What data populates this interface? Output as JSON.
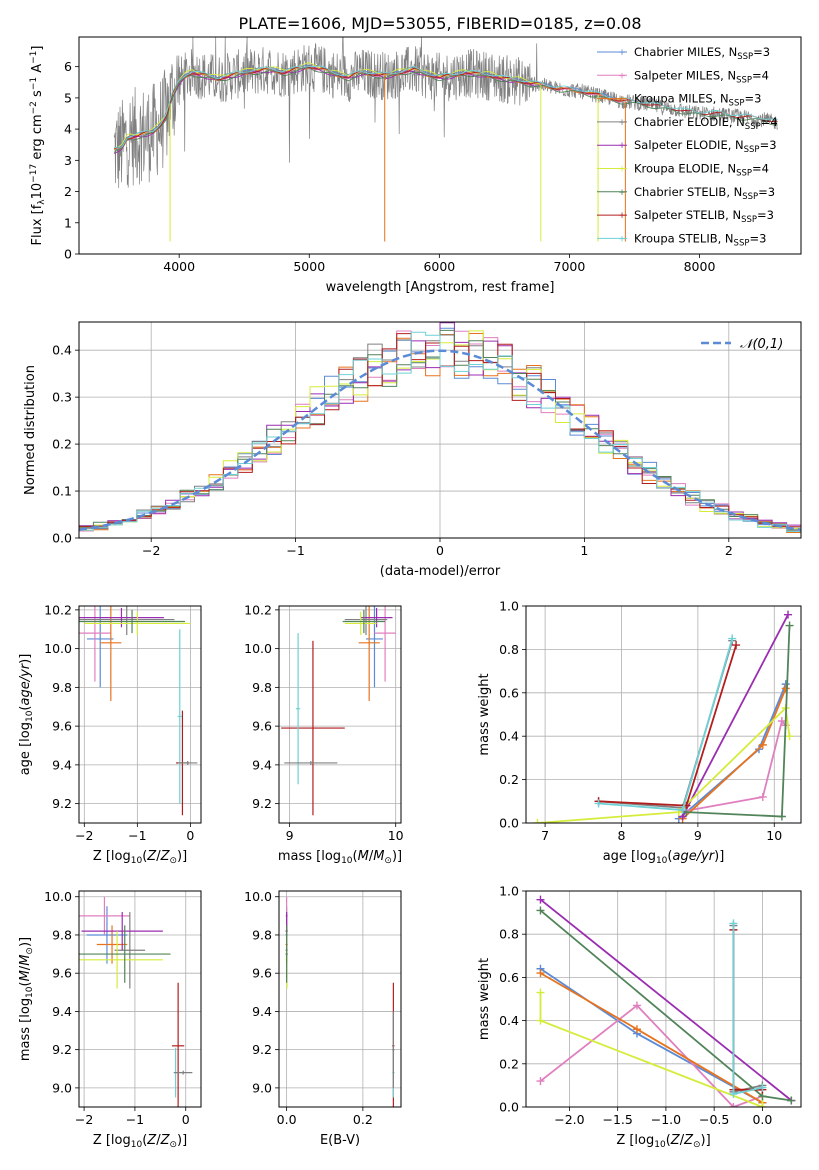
{
  "figure_title": "PLATE=1606, MJD=53055, FIBERID=0185, z=0.08",
  "colors": {
    "chabrier_miles": "#5b8bd6",
    "salpeter_miles": "#e07fbf",
    "kroupa_miles": "#e8731e",
    "chabrier_elodie": "#808080",
    "salpeter_elodie": "#9a2db0",
    "kroupa_elodie": "#d6ec3a",
    "chabrier_stelib": "#52845a",
    "salpeter_stelib": "#b21e1e",
    "kroupa_stelib": "#6fd0d6",
    "grid": "#b0b0b0"
  },
  "chart_data": [
    {
      "id": "spectrum",
      "type": "line",
      "xlabel": "wavelength [Angstrom, rest frame]",
      "ylabel": "Flux [f_λ10^-17 erg cm^-2 s^-1 A^-1]",
      "xlim": [
        3230,
        8780
      ],
      "ylim": [
        0,
        6.95
      ],
      "xticks": [
        4000,
        5000,
        6000,
        7000,
        8000
      ],
      "yticks": [
        0,
        1,
        2,
        3,
        4,
        5,
        6
      ],
      "grid": false,
      "legend_position": "upper-right",
      "continuum": {
        "x": [
          3500,
          3560,
          3600,
          3700,
          3800,
          3850,
          3900,
          3950,
          4000,
          4050,
          4100,
          4200,
          4300,
          4400,
          4500,
          4600,
          4700,
          4800,
          4900,
          5000,
          5100,
          5200,
          5300,
          5400,
          5500,
          5600,
          5700,
          5800,
          5900,
          6000,
          6100,
          6200,
          6300,
          6400,
          6500,
          6600,
          6700,
          6800,
          6900,
          7000,
          7100,
          7200,
          7300,
          7400,
          7500,
          7600,
          7700,
          7800,
          7900,
          8000,
          8100,
          8200,
          8300,
          8400,
          8500,
          8600
        ],
        "y": [
          3.3,
          3.4,
          3.7,
          3.8,
          3.9,
          4.1,
          4.4,
          5.1,
          5.5,
          5.7,
          5.8,
          5.7,
          5.6,
          5.7,
          5.8,
          5.85,
          5.9,
          5.8,
          5.9,
          6.0,
          5.9,
          5.75,
          5.65,
          5.8,
          5.75,
          5.7,
          5.8,
          5.9,
          5.75,
          5.65,
          5.7,
          5.8,
          5.75,
          5.7,
          5.6,
          5.55,
          5.45,
          5.4,
          5.3,
          5.25,
          5.2,
          5.1,
          5.0,
          4.9,
          4.85,
          4.8,
          4.7,
          4.65,
          4.55,
          4.5,
          4.5,
          4.45,
          4.4,
          4.35,
          4.3,
          4.2
        ]
      },
      "series": [
        {
          "name": "Chabrier MILES, N_SSP=3",
          "color_key": "chabrier_miles",
          "offset": 0.04,
          "x_max": 7400
        },
        {
          "name": "Salpeter MILES, N_SSP=4",
          "color_key": "salpeter_miles",
          "offset": -0.02,
          "x_max": 7400
        },
        {
          "name": "Kroupa MILES, N_SSP=3",
          "color_key": "kroupa_miles",
          "offset": 0.0,
          "x_max": 7400
        },
        {
          "name": "Chabrier ELODIE, N_SSP=4",
          "color_key": "chabrier_elodie",
          "offset": 0.05,
          "x_max": 6750
        },
        {
          "name": "Salpeter ELODIE, N_SSP=3",
          "color_key": "salpeter_elodie",
          "offset": -0.03,
          "x_max": 6750
        },
        {
          "name": "Kroupa ELODIE, N_SSP=4",
          "color_key": "kroupa_elodie",
          "offset": 0.08,
          "x_max": 6800
        },
        {
          "name": "Chabrier STELIB, N_SSP=3",
          "color_key": "chabrier_stelib",
          "offset": -0.05,
          "x_max": 8600
        },
        {
          "name": "Salpeter STELIB, N_SSP=3",
          "color_key": "salpeter_stelib",
          "offset": 0.02,
          "x_max": 8600
        },
        {
          "name": "Kroupa STELIB, N_SSP=3",
          "color_key": "kroupa_stelib",
          "offset": 0.06,
          "x_max": 8600
        }
      ],
      "legend_labels": [
        {
          "main": "Chabrier MILES, N",
          "sub": "SSP",
          "tail": "=3"
        },
        {
          "main": "Salpeter MILES, N",
          "sub": "SSP",
          "tail": "=4"
        },
        {
          "main": "Kroupa MILES, N",
          "sub": "SSP",
          "tail": "=3"
        },
        {
          "main": "Chabrier ELODIE, N",
          "sub": "SSP",
          "tail": "=4"
        },
        {
          "main": "Salpeter ELODIE, N",
          "sub": "SSP",
          "tail": "=3"
        },
        {
          "main": "Kroupa ELODIE, N",
          "sub": "SSP",
          "tail": "=4"
        },
        {
          "main": "Chabrier STELIB, N",
          "sub": "SSP",
          "tail": "=3"
        },
        {
          "main": "Salpeter STELIB, N",
          "sub": "SSP",
          "tail": "=3"
        },
        {
          "main": "Kroupa STELIB, N",
          "sub": "SSP",
          "tail": "=3"
        }
      ]
    },
    {
      "id": "residuals",
      "type": "step-histogram",
      "xlabel": "(data-model)/error",
      "ylabel": "Normed distribution",
      "xlim": [
        -2.5,
        2.5
      ],
      "ylim": [
        0,
        0.46
      ],
      "xticks": [
        -2,
        -1,
        0,
        1,
        2
      ],
      "yticks": [
        0.0,
        0.1,
        0.2,
        0.3,
        0.4
      ],
      "bin_width": 0.1,
      "grid": true,
      "legend_position": "upper-right",
      "legend_label": "𝒩(0,1)",
      "reference_curve": {
        "type": "gaussian",
        "mean": 0,
        "sigma": 1,
        "style": "dashed",
        "color_key": "chabrier_miles"
      }
    },
    {
      "id": "age_vs_Z",
      "type": "errorbar",
      "xlabel": "Z [log10(Z/Z☉)]",
      "ylabel": "age [log10(age/yr)]",
      "xlim": [
        -2.1,
        0.2
      ],
      "ylim": [
        9.1,
        10.22
      ],
      "xticks": [
        -2,
        -1,
        0
      ],
      "yticks": [
        9.2,
        9.4,
        9.6,
        9.8,
        10.0,
        10.2
      ],
      "grid": true,
      "points": [
        {
          "color_key": "chabrier_miles",
          "x": -1.7,
          "xerr": 0.25,
          "y": 10.05,
          "yerr": 0.25
        },
        {
          "color_key": "salpeter_miles",
          "x": -1.8,
          "xerr": 0.3,
          "y": 10.08,
          "yerr": 0.25
        },
        {
          "color_key": "kroupa_miles",
          "x": -1.5,
          "xerr": 0.2,
          "y": 10.03,
          "yerr": 0.3
        },
        {
          "color_key": "chabrier_elodie",
          "x": -1.2,
          "xerr": 0.9,
          "y": 10.15,
          "yerr": 0.08
        },
        {
          "color_key": "salpeter_elodie",
          "x": -1.3,
          "xerr": 0.8,
          "y": 10.16,
          "yerr": 0.05
        },
        {
          "color_key": "kroupa_elodie",
          "x": -1.0,
          "xerr": 1.0,
          "y": 10.13,
          "yerr": 0.06
        },
        {
          "color_key": "chabrier_stelib",
          "x": -1.1,
          "xerr": 1.0,
          "y": 10.14,
          "yerr": 0.06
        },
        {
          "color_key": "salpeter_stelib",
          "x": -0.15,
          "xerr": 0.12,
          "y": 9.41,
          "yerr": 0.27
        },
        {
          "color_key": "kroupa_stelib",
          "x": -0.2,
          "xerr": 0.04,
          "y": 9.65,
          "yerr": 0.45
        },
        {
          "color_key": "chabrier_elodie",
          "x": -0.05,
          "xerr": 0.18,
          "y": 9.41,
          "yerr": 0.01
        }
      ]
    },
    {
      "id": "age_vs_mass",
      "type": "errorbar",
      "xlabel": "mass [log10(M/M☉)]",
      "ylabel": "",
      "xlim": [
        8.9,
        10.05
      ],
      "ylim": [
        9.1,
        10.22
      ],
      "xticks": [
        9,
        10
      ],
      "yticks": [
        9.2,
        9.4,
        9.6,
        9.8,
        10.0,
        10.2
      ],
      "grid": true,
      "points": [
        {
          "color_key": "chabrier_miles",
          "x": 9.8,
          "xerr": 0.08,
          "y": 10.05,
          "yerr": 0.25
        },
        {
          "color_key": "salpeter_miles",
          "x": 9.9,
          "xerr": 0.1,
          "y": 10.08,
          "yerr": 0.25
        },
        {
          "color_key": "kroupa_miles",
          "x": 9.75,
          "xerr": 0.1,
          "y": 10.03,
          "yerr": 0.3
        },
        {
          "color_key": "chabrier_elodie",
          "x": 9.72,
          "xerr": 0.2,
          "y": 10.15,
          "yerr": 0.08
        },
        {
          "color_key": "salpeter_elodie",
          "x": 9.82,
          "xerr": 0.15,
          "y": 10.16,
          "yerr": 0.05
        },
        {
          "color_key": "kroupa_elodie",
          "x": 9.67,
          "xerr": 0.15,
          "y": 10.13,
          "yerr": 0.06
        },
        {
          "color_key": "chabrier_stelib",
          "x": 9.7,
          "xerr": 0.2,
          "y": 10.14,
          "yerr": 0.06
        },
        {
          "color_key": "salpeter_stelib",
          "x": 9.22,
          "xerr": 0.3,
          "y": 9.59,
          "yerr": 0.45
        },
        {
          "color_key": "kroupa_stelib",
          "x": 9.08,
          "xerr": 0.02,
          "y": 9.69,
          "yerr": 0.39
        },
        {
          "color_key": "chabrier_elodie",
          "x": 9.2,
          "xerr": 0.25,
          "y": 9.41,
          "yerr": 0.01
        }
      ]
    },
    {
      "id": "weight_vs_age",
      "type": "line",
      "xlabel": "age [log10(age/yr)]",
      "ylabel": "mass weight",
      "xlim": [
        6.75,
        10.35
      ],
      "ylim": [
        0,
        1.0
      ],
      "xticks": [
        7,
        8,
        9,
        10
      ],
      "yticks": [
        0.0,
        0.2,
        0.4,
        0.6,
        0.8,
        1.0
      ],
      "grid": true,
      "series": [
        {
          "color_key": "chabrier_miles",
          "x": [
            8.75,
            9.8,
            10.15
          ],
          "y": [
            0.02,
            0.34,
            0.64
          ]
        },
        {
          "color_key": "salpeter_miles",
          "x": [
            8.75,
            9.85,
            10.1,
            10.15
          ],
          "y": [
            0.05,
            0.12,
            0.47,
            0.45
          ]
        },
        {
          "color_key": "kroupa_miles",
          "x": [
            8.8,
            9.85,
            10.15
          ],
          "y": [
            0.02,
            0.36,
            0.62
          ]
        },
        {
          "color_key": "chabrier_elodie",
          "x": [
            7.7,
            8.8,
            9.45
          ],
          "y": [
            0.1,
            0.07,
            0.84
          ]
        },
        {
          "color_key": "salpeter_elodie",
          "x": [
            8.8,
            10.18
          ],
          "y": [
            0.03,
            0.96
          ]
        },
        {
          "color_key": "kroupa_elodie",
          "x": [
            6.9,
            8.75,
            10.15,
            10.2
          ],
          "y": [
            0.0,
            0.05,
            0.53,
            0.4
          ]
        },
        {
          "color_key": "chabrier_stelib",
          "x": [
            8.85,
            10.1,
            10.2
          ],
          "y": [
            0.05,
            0.03,
            0.91
          ]
        },
        {
          "color_key": "salpeter_stelib",
          "x": [
            7.7,
            8.85,
            9.5
          ],
          "y": [
            0.1,
            0.08,
            0.82
          ]
        },
        {
          "color_key": "kroupa_stelib",
          "x": [
            7.7,
            8.8,
            9.45
          ],
          "y": [
            0.09,
            0.06,
            0.85
          ]
        }
      ]
    },
    {
      "id": "mass_vs_Z",
      "type": "errorbar",
      "xlabel": "Z [log10(Z/Z☉)]",
      "ylabel": "mass [log10(M/M☉)]",
      "xlim": [
        -2.1,
        0.3
      ],
      "ylim": [
        8.9,
        10.03
      ],
      "xticks": [
        -2,
        -1,
        0
      ],
      "yticks": [
        9.0,
        9.2,
        9.4,
        9.6,
        9.8,
        10.0
      ],
      "grid": true,
      "points": [
        {
          "color_key": "chabrier_miles",
          "x": -1.55,
          "xerr": 0.4,
          "y": 9.8,
          "yerr": 0.15
        },
        {
          "color_key": "salpeter_miles",
          "x": -1.6,
          "xerr": 0.5,
          "y": 9.9,
          "yerr": 0.1
        },
        {
          "color_key": "kroupa_miles",
          "x": -1.45,
          "xerr": 0.3,
          "y": 9.75,
          "yerr": 0.1
        },
        {
          "color_key": "chabrier_elodie",
          "x": -1.1,
          "xerr": 0.3,
          "y": 9.72,
          "yerr": 0.2
        },
        {
          "color_key": "salpeter_elodie",
          "x": -1.25,
          "xerr": 0.8,
          "y": 9.82,
          "yerr": 0.1
        },
        {
          "color_key": "kroupa_elodie",
          "x": -1.35,
          "xerr": 0.9,
          "y": 9.67,
          "yerr": 0.15
        },
        {
          "color_key": "chabrier_stelib",
          "x": -1.2,
          "xerr": 0.9,
          "y": 9.7,
          "yerr": 0.15
        },
        {
          "color_key": "salpeter_stelib",
          "x": -0.15,
          "xerr": 0.12,
          "y": 9.22,
          "yerr": 0.33
        },
        {
          "color_key": "kroupa_stelib",
          "x": -0.2,
          "xerr": 0.04,
          "y": 9.08,
          "yerr": 0.13
        },
        {
          "color_key": "chabrier_elodie",
          "x": -0.05,
          "xerr": 0.18,
          "y": 9.08,
          "yerr": 0.01
        }
      ]
    },
    {
      "id": "mass_vs_EBV",
      "type": "errorbar",
      "xlabel": "E(B-V)",
      "ylabel": "",
      "xlim": [
        -0.02,
        0.3
      ],
      "ylim": [
        8.9,
        10.03
      ],
      "xticks": [
        0.0,
        0.2
      ],
      "yticks": [
        9.0,
        9.2,
        9.4,
        9.6,
        9.8,
        10.0
      ],
      "grid": true,
      "points": [
        {
          "color_key": "chabrier_miles",
          "x": 0.0,
          "xerr": 0.003,
          "y": 9.8,
          "yerr": 0.15
        },
        {
          "color_key": "salpeter_miles",
          "x": 0.0,
          "xerr": 0.003,
          "y": 9.9,
          "yerr": 0.1
        },
        {
          "color_key": "kroupa_miles",
          "x": 0.0,
          "xerr": 0.003,
          "y": 9.75,
          "yerr": 0.1
        },
        {
          "color_key": "chabrier_elodie",
          "x": 0.0,
          "xerr": 0.003,
          "y": 9.72,
          "yerr": 0.2
        },
        {
          "color_key": "salpeter_elodie",
          "x": 0.0,
          "xerr": 0.003,
          "y": 9.82,
          "yerr": 0.1
        },
        {
          "color_key": "kroupa_elodie",
          "x": 0.0,
          "xerr": 0.003,
          "y": 9.67,
          "yerr": 0.15
        },
        {
          "color_key": "chabrier_stelib",
          "x": 0.0,
          "xerr": 0.003,
          "y": 9.7,
          "yerr": 0.15
        },
        {
          "color_key": "salpeter_stelib",
          "x": 0.28,
          "xerr": 0.003,
          "y": 9.22,
          "yerr": 0.33
        },
        {
          "color_key": "kroupa_stelib",
          "x": 0.28,
          "xerr": 0.003,
          "y": 9.08,
          "yerr": 0.13
        },
        {
          "color_key": "chabrier_elodie",
          "x": 0.28,
          "xerr": 0.003,
          "y": 9.2,
          "yerr": 0.2
        }
      ]
    },
    {
      "id": "weight_vs_Z",
      "type": "line",
      "xlabel": "Z [log10(Z/Z☉)]",
      "ylabel": "mass weight",
      "xlim": [
        -2.45,
        0.4
      ],
      "ylim": [
        0,
        1.0
      ],
      "xticks": [
        -2.0,
        -1.5,
        -1.0,
        -0.5,
        0.0
      ],
      "yticks": [
        0.0,
        0.2,
        0.4,
        0.6,
        0.8,
        1.0
      ],
      "grid": true,
      "series": [
        {
          "color_key": "chabrier_miles",
          "x": [
            -2.3,
            -1.3,
            0.0
          ],
          "y": [
            0.64,
            0.34,
            0.02
          ]
        },
        {
          "color_key": "salpeter_miles",
          "x": [
            -2.3,
            -1.3,
            -0.3,
            0.0
          ],
          "y": [
            0.12,
            0.47,
            0.0,
            0.05
          ]
        },
        {
          "color_key": "kroupa_miles",
          "x": [
            -2.3,
            -1.3,
            0.0
          ],
          "y": [
            0.62,
            0.36,
            0.02
          ]
        },
        {
          "color_key": "chabrier_elodie",
          "x": [
            -0.3,
            -0.3,
            0.0
          ],
          "y": [
            0.84,
            0.07,
            0.1
          ]
        },
        {
          "color_key": "salpeter_elodie",
          "x": [
            -2.3,
            0.3
          ],
          "y": [
            0.96,
            0.03
          ]
        },
        {
          "color_key": "kroupa_elodie",
          "x": [
            -2.3,
            -2.3,
            0.0,
            0.0
          ],
          "y": [
            0.53,
            0.4,
            0.0,
            0.05
          ]
        },
        {
          "color_key": "chabrier_stelib",
          "x": [
            -2.3,
            0.0,
            0.3
          ],
          "y": [
            0.91,
            0.05,
            0.03
          ]
        },
        {
          "color_key": "salpeter_stelib",
          "x": [
            -0.3,
            -0.3,
            0.0
          ],
          "y": [
            0.82,
            0.08,
            0.08
          ]
        },
        {
          "color_key": "kroupa_stelib",
          "x": [
            -0.3,
            -0.3,
            0.0
          ],
          "y": [
            0.85,
            0.06,
            0.09
          ]
        }
      ]
    }
  ]
}
